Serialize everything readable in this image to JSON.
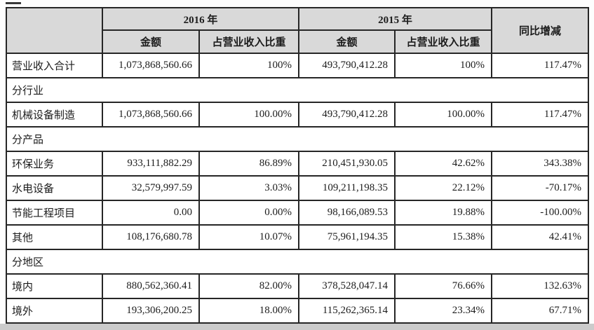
{
  "table": {
    "header": {
      "year_2016": "2016 年",
      "year_2015": "2015 年",
      "amount": "金额",
      "proportion": "占营业收入比重",
      "yoy": "同比增减"
    },
    "rows": [
      {
        "type": "data",
        "shaded": true,
        "label": "营业收入合计",
        "a2016": "1,073,868,560.66",
        "p2016": "100%",
        "a2015": "493,790,412.28",
        "p2015": "100%",
        "yoy": "117.47%"
      },
      {
        "type": "section",
        "label": "分行业"
      },
      {
        "type": "data",
        "label": "机械设备制造",
        "a2016": "1,073,868,560.66",
        "p2016": "100.00%",
        "a2015": "493,790,412.28",
        "p2015": "100.00%",
        "yoy": "117.47%"
      },
      {
        "type": "section",
        "label": "分产品"
      },
      {
        "type": "data",
        "label": "环保业务",
        "a2016": "933,111,882.29",
        "p2016": "86.89%",
        "a2015": "210,451,930.05",
        "p2015": "42.62%",
        "yoy": "343.38%"
      },
      {
        "type": "data",
        "label": "水电设备",
        "a2016": "32,579,997.59",
        "p2016": "3.03%",
        "a2015": "109,211,198.35",
        "p2015": "22.12%",
        "yoy": "-70.17%"
      },
      {
        "type": "data",
        "label": "节能工程项目",
        "a2016": "0.00",
        "p2016": "0.00%",
        "a2015": "98,166,089.53",
        "p2015": "19.88%",
        "yoy": "-100.00%"
      },
      {
        "type": "data",
        "label": "其他",
        "a2016": "108,176,680.78",
        "p2016": "10.07%",
        "a2015": "75,961,194.35",
        "p2015": "15.38%",
        "yoy": "42.41%"
      },
      {
        "type": "section",
        "label": "分地区"
      },
      {
        "type": "data",
        "label": "境内",
        "a2016": "880,562,360.41",
        "p2016": "82.00%",
        "a2015": "378,528,047.14",
        "p2015": "76.66%",
        "yoy": "132.63%"
      },
      {
        "type": "data",
        "label": "境外",
        "a2016": "193,306,200.25",
        "p2016": "18.00%",
        "a2015": "115,262,365.14",
        "p2015": "23.34%",
        "yoy": "67.71%"
      }
    ],
    "colors": {
      "header_bg": "#d9d9d9",
      "section_bg": "#d6d6d6",
      "border": "#262626",
      "bottom_strip": "#cbcbcb"
    }
  }
}
